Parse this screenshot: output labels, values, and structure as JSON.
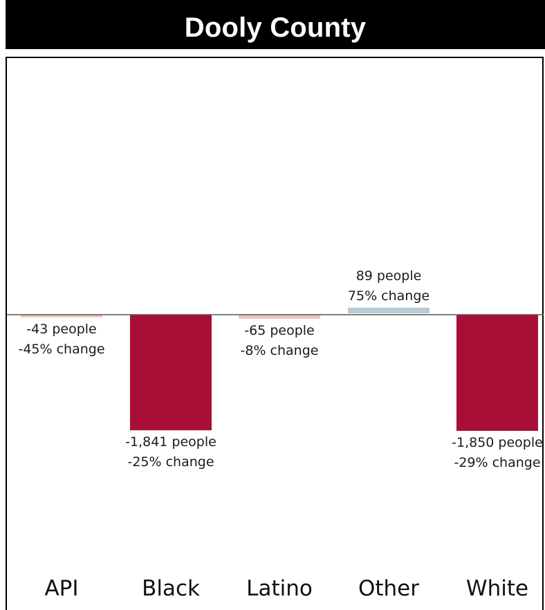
{
  "title": "Dooly County",
  "chart_data": {
    "type": "bar",
    "title": "Dooly County",
    "categories": [
      "API",
      "Black",
      "Latino",
      "Other",
      "White"
    ],
    "values": [
      -43,
      -1841,
      -65,
      89,
      -1850
    ],
    "percent_change": [
      "-45%",
      "-25%",
      "-8%",
      "75%",
      "-29%"
    ],
    "labels": [
      [
        "-43 people",
        "-45% change"
      ],
      [
        "-1,841 people",
        "-25% change"
      ],
      [
        "-65 people",
        "-8% change"
      ],
      [
        "89 people",
        "75% change"
      ],
      [
        "-1,850 people",
        "-29% change"
      ]
    ],
    "colors": [
      "#f2c4bc",
      "#a80f36",
      "#f2c4bc",
      "#b8cad8",
      "#a80f36"
    ],
    "ylim": [
      -1850,
      89
    ],
    "grid": false,
    "legend": "none"
  }
}
